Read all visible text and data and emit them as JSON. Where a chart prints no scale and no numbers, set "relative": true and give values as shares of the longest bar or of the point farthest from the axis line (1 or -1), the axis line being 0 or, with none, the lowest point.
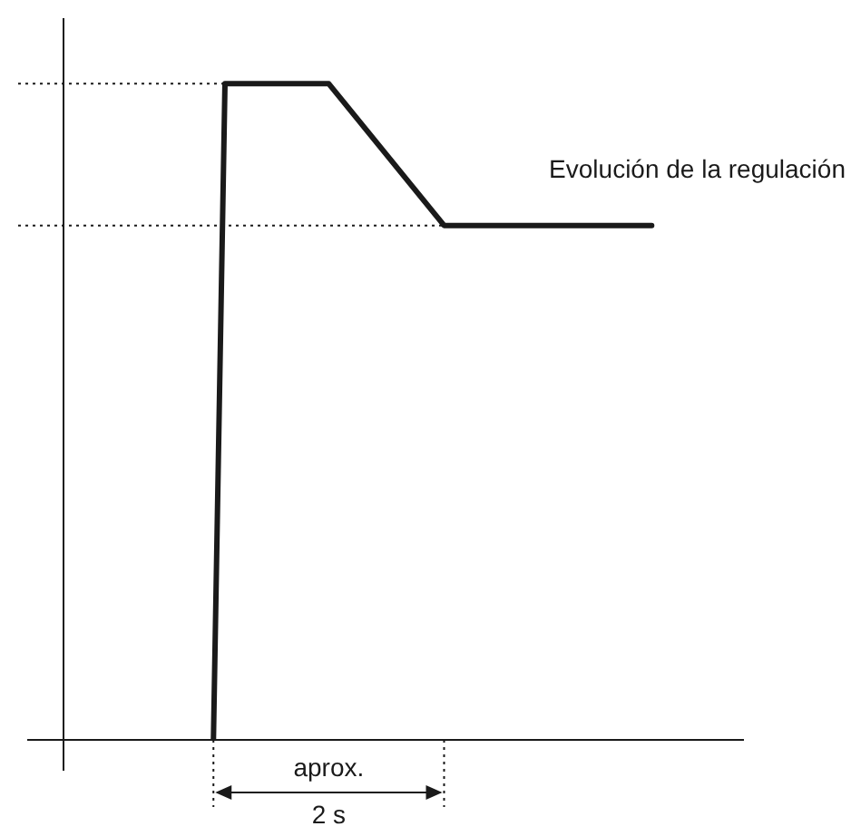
{
  "chart_data": {
    "type": "line",
    "relative": true,
    "categories": [
      null,
      null,
      null,
      null,
      null,
      null,
      null,
      null,
      null,
      null,
      null,
      null,
      null,
      null,
      null,
      null,
      null,
      null,
      null,
      null,
      null,
      null,
      null,
      null,
      null,
      null,
      null,
      null,
      null,
      null,
      null,
      null,
      null,
      null,
      null,
      null,
      null,
      null,
      null,
      null,
      null,
      null,
      null,
      null,
      null,
      null,
      null,
      null,
      null,
      null,
      null,
      null,
      null,
      null,
      null,
      null,
      null,
      null,
      null,
      null
    ],
    "series": [
      {
        "color": "#1a1a1a",
        "values": [
          null,
          null,
          null,
          null,
          null,
          null,
          null,
          null,
          null,
          null,
          null,
          null,
          null,
          0,
          1,
          null,
          null,
          null,
          null,
          null,
          null,
          null,
          null,
          1,
          null,
          null,
          null,
          null,
          null,
          null,
          null,
          null,
          null,
          0.784,
          null,
          null,
          null,
          null,
          null,
          null,
          null,
          null,
          null,
          null,
          null,
          null,
          null,
          null,
          null,
          null,
          null,
          0.784,
          null,
          null,
          null,
          null,
          null,
          null,
          null,
          null
        ]
      }
    ],
    "ref_lines": [
      {
        "axis": "y",
        "value": 1,
        "line_style": "dotted"
      },
      {
        "axis": "y",
        "value": 0.784,
        "line_style": "dotted"
      }
    ],
    "marker": "none",
    "line_style": "solid",
    "annotations": [
      "Evolución de la regulación",
      "aprox. 2 s"
    ]
  }
}
